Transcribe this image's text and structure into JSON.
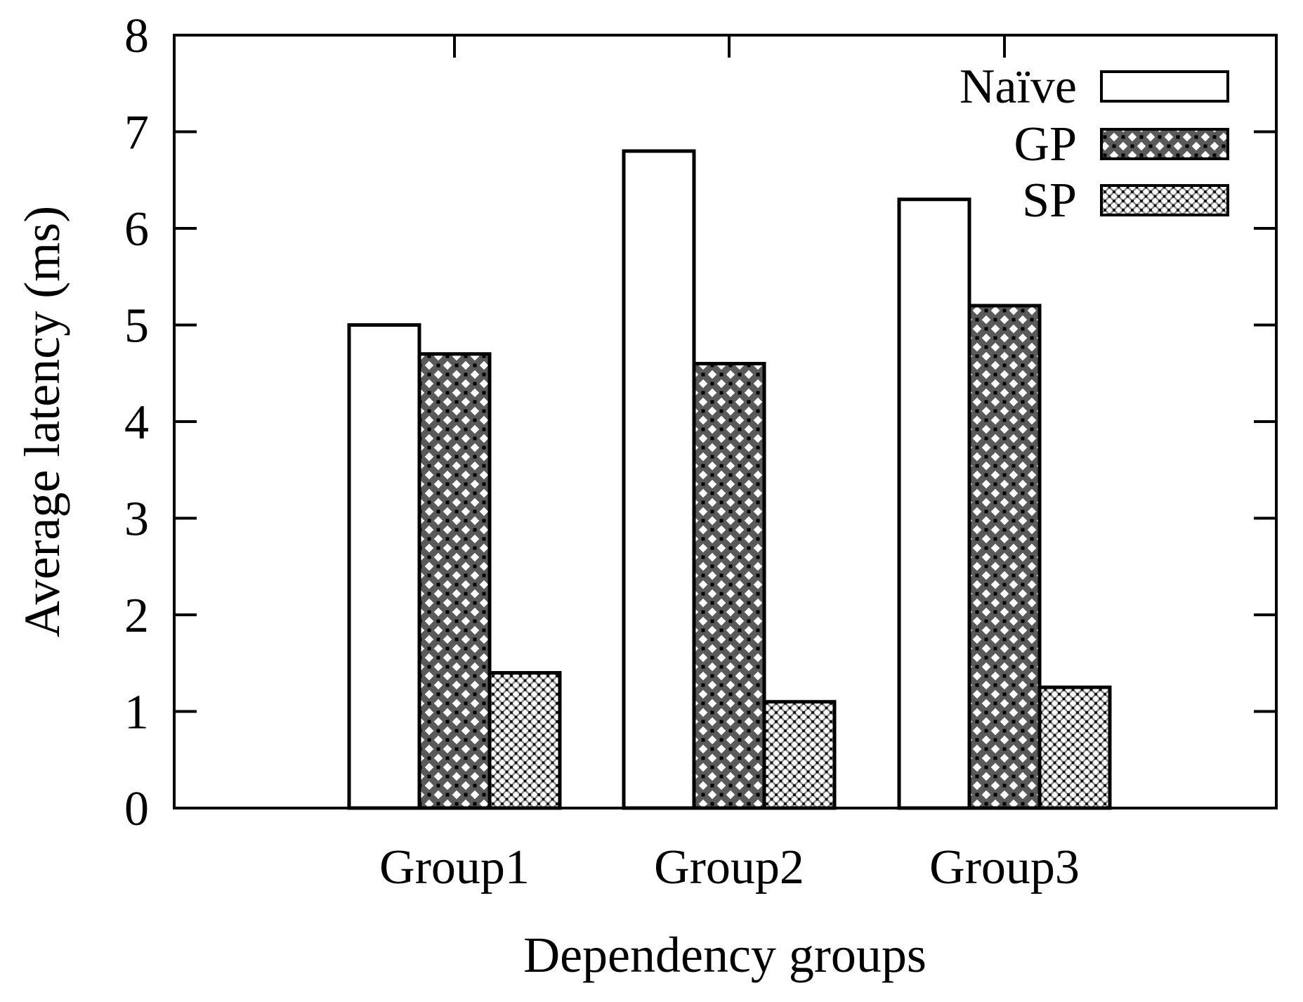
{
  "figure_title": "",
  "colors": {
    "background": "#ffffff",
    "text": "#000000",
    "bar_border": "#000000",
    "frame": "#000000",
    "naive_fill": "#ffffff",
    "gp_hatch": "#555555",
    "sp_hatch": "#7a7a7a"
  },
  "chart_data": {
    "type": "bar",
    "title": "",
    "xlabel": "Dependency groups",
    "ylabel": "Average latency (ms)",
    "categories": [
      "Group1",
      "Group2",
      "Group3"
    ],
    "series": [
      {
        "name": "Naïve",
        "fill_style": "solid-white",
        "values": [
          5.0,
          6.8,
          6.3
        ]
      },
      {
        "name": "GP",
        "fill_style": "crosshatch-dense",
        "values": [
          4.7,
          4.6,
          5.2
        ]
      },
      {
        "name": "SP",
        "fill_style": "crosshatch-fine",
        "values": [
          1.4,
          1.1,
          1.25
        ]
      }
    ],
    "ylim": [
      0,
      8
    ],
    "y_ticks": [
      0,
      1,
      2,
      3,
      4,
      5,
      6,
      7,
      8
    ],
    "grid": false,
    "legend_position": "top-right",
    "legend_entries": [
      "Naïve",
      "GP",
      "SP"
    ]
  }
}
